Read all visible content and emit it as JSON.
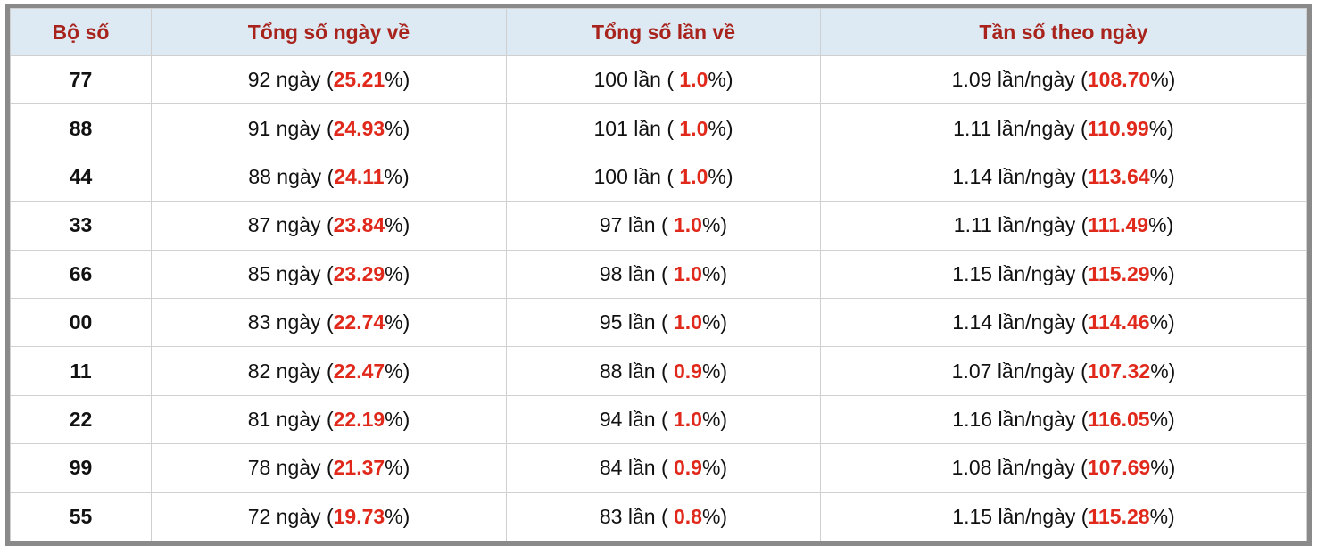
{
  "table": {
    "header": [
      "Bộ số",
      "Tổng số ngày về",
      "Tổng số lần về",
      "Tần số theo ngày"
    ],
    "rows": [
      [
        "77",
        [
          "92 ngày (",
          "25.21",
          "%)"
        ],
        [
          "100 lần ( ",
          "1.0",
          "%)"
        ],
        [
          "1.09 lần/ngày (",
          "108.70",
          "%)"
        ]
      ],
      [
        "88",
        [
          "91 ngày (",
          "24.93",
          "%)"
        ],
        [
          "101 lần ( ",
          "1.0",
          "%)"
        ],
        [
          "1.11 lần/ngày (",
          "110.99",
          "%)"
        ]
      ],
      [
        "44",
        [
          "88 ngày (",
          "24.11",
          "%)"
        ],
        [
          "100 lần ( ",
          "1.0",
          "%)"
        ],
        [
          "1.14 lần/ngày (",
          "113.64",
          "%)"
        ]
      ],
      [
        "33",
        [
          "87 ngày (",
          "23.84",
          "%)"
        ],
        [
          "97 lần ( ",
          "1.0",
          "%)"
        ],
        [
          "1.11 lần/ngày (",
          "111.49",
          "%)"
        ]
      ],
      [
        "66",
        [
          "85 ngày (",
          "23.29",
          "%)"
        ],
        [
          "98 lần ( ",
          "1.0",
          "%)"
        ],
        [
          "1.15 lần/ngày (",
          "115.29",
          "%)"
        ]
      ],
      [
        "00",
        [
          "83 ngày (",
          "22.74",
          "%)"
        ],
        [
          "95 lần ( ",
          "1.0",
          "%)"
        ],
        [
          "1.14 lần/ngày (",
          "114.46",
          "%)"
        ]
      ],
      [
        "11",
        [
          "82 ngày (",
          "22.47",
          "%)"
        ],
        [
          "88 lần ( ",
          "0.9",
          "%)"
        ],
        [
          "1.07 lần/ngày (",
          "107.32",
          "%)"
        ]
      ],
      [
        "22",
        [
          "81 ngày (",
          "22.19",
          "%)"
        ],
        [
          "94 lần ( ",
          "1.0",
          "%)"
        ],
        [
          "1.16 lần/ngày (",
          "116.05",
          "%)"
        ]
      ],
      [
        "99",
        [
          "78 ngày (",
          "21.37",
          "%)"
        ],
        [
          "84 lần ( ",
          "0.9",
          "%)"
        ],
        [
          "1.08 lần/ngày (",
          "107.69",
          "%)"
        ]
      ],
      [
        "55",
        [
          "72 ngày (",
          "19.73",
          "%)"
        ],
        [
          "83 lần ( ",
          "0.8",
          "%)"
        ],
        [
          "1.15 lần/ngày (",
          "115.28",
          "%)"
        ]
      ]
    ]
  }
}
